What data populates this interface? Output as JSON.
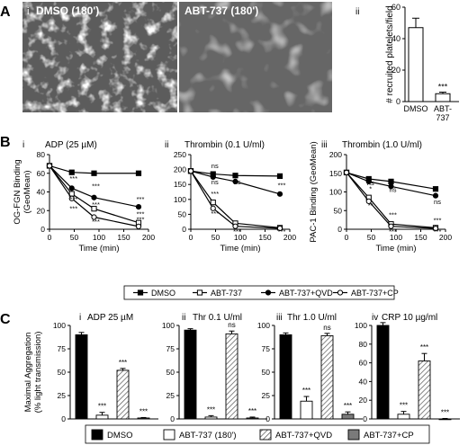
{
  "panels": {
    "A": "A",
    "B": "B",
    "C": "C"
  },
  "panel_A": {
    "sub_i": "i",
    "sub_ii": "ii",
    "image_left_label": "DMSO (180')",
    "image_right_label": "ABT-737 (180')"
  },
  "legend_B": [
    "DMSO",
    "ABT-737",
    "ABT-737+QVD",
    "ABT-737+CP"
  ],
  "legend_C": [
    "DMSO",
    "ABT-737 (180')",
    "ABT-737+QVD",
    "ABT-737+CP"
  ],
  "colors": {
    "black": "#000000",
    "white": "#ffffff",
    "hatch": "#bdbdbd",
    "grey": "#7a7a7a",
    "micro_bg": "#5a5a5a"
  },
  "chart_data": [
    {
      "id": "A-ii",
      "type": "bar",
      "sub": "ii",
      "categories": [
        "DMSO",
        "ABT-\n737"
      ],
      "values": [
        47,
        5
      ],
      "errors": [
        6,
        1
      ],
      "ylabel": "# recruited platelets/field",
      "ylim": [
        0,
        60
      ],
      "yticks": [
        0,
        20,
        40,
        60
      ],
      "annotations": [
        "",
        "***"
      ]
    },
    {
      "id": "B-i",
      "type": "line",
      "sub": "i",
      "title": "ADP (25 µM)",
      "x": [
        0,
        45,
        90,
        180
      ],
      "xlim": [
        0,
        200
      ],
      "xticks": [
        0,
        50,
        100,
        150,
        200
      ],
      "xlabel": "Time (min)",
      "ylim": [
        0,
        80
      ],
      "yticks": [
        0,
        20,
        40,
        60,
        80
      ],
      "ylabel": "OG-FGN Binding\n(GeoMean)",
      "series": [
        {
          "name": "DMSO",
          "values": [
            68,
            61,
            60,
            60
          ]
        },
        {
          "name": "ABT-737",
          "values": [
            68,
            38,
            22,
            7
          ]
        },
        {
          "name": "ABT-737+QVD",
          "values": [
            68,
            44,
            34,
            24
          ]
        },
        {
          "name": "ABT-737+CP",
          "values": [
            68,
            33,
            13,
            3
          ]
        }
      ],
      "annotations": [
        {
          "x": 45,
          "y": 52,
          "text": "***"
        },
        {
          "x": 45,
          "y": 30,
          "text": "***"
        },
        {
          "x": 45,
          "y": 20,
          "text": "***"
        },
        {
          "x": 90,
          "y": 44,
          "text": "***"
        },
        {
          "x": 90,
          "y": 24,
          "text": "***"
        },
        {
          "x": 90,
          "y": 6,
          "text": "***"
        },
        {
          "x": 180,
          "y": 30,
          "text": "***"
        },
        {
          "x": 180,
          "y": 14,
          "text": "***"
        },
        {
          "x": 180,
          "y": 8,
          "text": "***"
        }
      ]
    },
    {
      "id": "B-ii",
      "type": "line",
      "sub": "ii",
      "title": "Thrombin (0.1 U/ml)",
      "x": [
        0,
        45,
        90,
        180
      ],
      "xlim": [
        0,
        200
      ],
      "xticks": [
        0,
        50,
        100,
        150,
        200
      ],
      "xlabel": "Time (min)",
      "ylim": [
        0,
        250
      ],
      "yticks": [
        0,
        50,
        100,
        150,
        200,
        250
      ],
      "ylabel": "",
      "series": [
        {
          "name": "DMSO",
          "values": [
            195,
            185,
            180,
            178
          ]
        },
        {
          "name": "ABT-737",
          "values": [
            195,
            90,
            20,
            5
          ]
        },
        {
          "name": "ABT-737+QVD",
          "values": [
            195,
            175,
            160,
            118
          ]
        },
        {
          "name": "ABT-737+CP",
          "values": [
            195,
            70,
            10,
            3
          ]
        }
      ],
      "annotations": [
        {
          "x": 45,
          "y": 205,
          "text": "ns"
        },
        {
          "x": 45,
          "y": 150,
          "text": "ns"
        },
        {
          "x": 90,
          "y": 150,
          "text": "ns"
        },
        {
          "x": 45,
          "y": 112,
          "text": "***"
        },
        {
          "x": 45,
          "y": 45,
          "text": "***"
        },
        {
          "x": 90,
          "y": -15,
          "text": "***"
        },
        {
          "x": 180,
          "y": 140,
          "text": "***"
        },
        {
          "x": 180,
          "y": -15,
          "text": "***"
        }
      ]
    },
    {
      "id": "B-iii",
      "type": "line",
      "sub": "iii",
      "title": "Thrombin (1.0 U/ml)",
      "x": [
        0,
        45,
        90,
        180
      ],
      "xlim": [
        0,
        200
      ],
      "xticks": [
        0,
        50,
        100,
        150,
        200
      ],
      "xlabel": "Time (min)",
      "ylim": [
        0,
        200
      ],
      "yticks": [
        0,
        50,
        100,
        150,
        200
      ],
      "ylabel": "PAC-1 Binding (GeoMean)",
      "series": [
        {
          "name": "DMSO",
          "values": [
            152,
            135,
            128,
            108
          ]
        },
        {
          "name": "ABT-737",
          "values": [
            152,
            85,
            14,
            4
          ]
        },
        {
          "name": "ABT-737+QVD",
          "values": [
            152,
            128,
            115,
            90
          ]
        },
        {
          "name": "ABT-737+CP",
          "values": [
            152,
            75,
            8,
            2
          ]
        }
      ],
      "annotations": [
        {
          "x": 45,
          "y": 118,
          "text": "ns"
        },
        {
          "x": 45,
          "y": 102,
          "text": "*"
        },
        {
          "x": 90,
          "y": 100,
          "text": "ns"
        },
        {
          "x": 180,
          "y": 68,
          "text": "ns"
        },
        {
          "x": 45,
          "y": 58,
          "text": "**"
        },
        {
          "x": 90,
          "y": 33,
          "text": "***"
        },
        {
          "x": 90,
          "y": -12,
          "text": "***"
        },
        {
          "x": 180,
          "y": 18,
          "text": "***"
        },
        {
          "x": 180,
          "y": -12,
          "text": "***"
        }
      ]
    },
    {
      "id": "C-i",
      "type": "bar",
      "sub": "i",
      "title": "ADP 25 µM",
      "ylabel": "Maximal Aggregation\n(% light transmission)",
      "ylim": [
        0,
        100
      ],
      "yticks": [
        0,
        25,
        50,
        75,
        100
      ],
      "series": [
        {
          "name": "DMSO",
          "value": 90,
          "error": 2.5,
          "annotation": ""
        },
        {
          "name": "ABT-737 (180')",
          "value": 4,
          "error": 3,
          "annotation": "***"
        },
        {
          "name": "ABT-737+QVD",
          "value": 52,
          "error": 2,
          "annotation": "***"
        },
        {
          "name": "ABT-737+CP",
          "value": 1,
          "error": 0.5,
          "annotation": "***"
        }
      ]
    },
    {
      "id": "C-ii",
      "type": "bar",
      "sub": "ii",
      "title": "Thr 0.1 U/ml",
      "ylabel": "",
      "ylim": [
        0,
        100
      ],
      "yticks": [
        0,
        25,
        50,
        75,
        100
      ],
      "series": [
        {
          "name": "DMSO",
          "value": 95,
          "error": 1.5,
          "annotation": ""
        },
        {
          "name": "ABT-737 (180')",
          "value": 2,
          "error": 1.5,
          "annotation": "***"
        },
        {
          "name": "ABT-737+QVD",
          "value": 91,
          "error": 3,
          "annotation": "ns"
        },
        {
          "name": "ABT-737+CP",
          "value": 1,
          "error": 1,
          "annotation": "***"
        }
      ]
    },
    {
      "id": "C-iii",
      "type": "bar",
      "sub": "iii",
      "title": "Thr 1.0 U/ml",
      "ylabel": "",
      "ylim": [
        0,
        100
      ],
      "yticks": [
        0,
        25,
        50,
        75,
        100
      ],
      "series": [
        {
          "name": "DMSO",
          "value": 90,
          "error": 2,
          "annotation": ""
        },
        {
          "name": "ABT-737 (180')",
          "value": 19,
          "error": 5,
          "annotation": "***"
        },
        {
          "name": "ABT-737+QVD",
          "value": 89,
          "error": 2.5,
          "annotation": "ns"
        },
        {
          "name": "ABT-737+CP",
          "value": 5,
          "error": 2.5,
          "annotation": "***"
        }
      ]
    },
    {
      "id": "C-iv",
      "type": "bar",
      "sub": "iv",
      "title": "CRP 10 µg/ml",
      "ylabel": "",
      "ylim": [
        0,
        100
      ],
      "yticks": [
        0,
        20,
        40,
        60,
        80,
        100
      ],
      "series": [
        {
          "name": "DMSO",
          "value": 100,
          "error": 3,
          "annotation": ""
        },
        {
          "name": "ABT-737 (180')",
          "value": 5,
          "error": 3,
          "annotation": "***"
        },
        {
          "name": "ABT-737+QVD",
          "value": 62,
          "error": 8,
          "annotation": "***"
        },
        {
          "name": "ABT-737+CP",
          "value": 0,
          "error": 0.5,
          "annotation": "***"
        }
      ]
    }
  ]
}
